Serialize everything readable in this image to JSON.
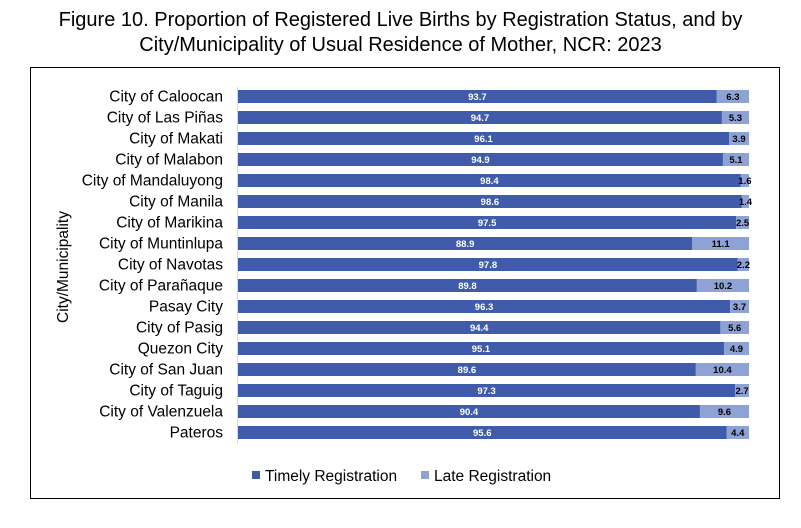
{
  "title_line1": "Figure 10. Proportion of Registered Live Births by Registration Status, and by",
  "title_line2": "City/Municipality of Usual Residence of Mother, NCR: 2023",
  "colors": {
    "timely": "#3f5ba9",
    "late": "#8ea2d6"
  },
  "chart_data": {
    "type": "bar",
    "orientation": "horizontal",
    "stacked": "percent",
    "ylabel": "City/Municipality",
    "xlim": [
      0,
      100
    ],
    "legend_position": "bottom",
    "categories": [
      "City of Caloocan",
      "City of Las Piñas",
      "City of Makati",
      "City of Malabon",
      "City of Mandaluyong",
      "City of Manila",
      "City of Marikina",
      "City of Muntinlupa",
      "City of Navotas",
      "City of Parañaque",
      "Pasay City",
      "City of Pasig",
      "Quezon City",
      "City of San Juan",
      "City of Taguig",
      "City of Valenzuela",
      "Pateros"
    ],
    "series": [
      {
        "name": "Timely Registration",
        "values": [
          93.7,
          94.7,
          96.1,
          94.9,
          98.4,
          98.6,
          97.5,
          88.9,
          97.8,
          89.8,
          96.3,
          94.4,
          95.1,
          89.6,
          97.3,
          90.4,
          95.6
        ]
      },
      {
        "name": "Late Registration",
        "values": [
          6.3,
          5.3,
          3.9,
          5.1,
          1.6,
          1.4,
          2.5,
          11.1,
          2.2,
          10.2,
          3.7,
          5.6,
          4.9,
          10.4,
          2.7,
          9.6,
          4.4
        ]
      }
    ]
  }
}
